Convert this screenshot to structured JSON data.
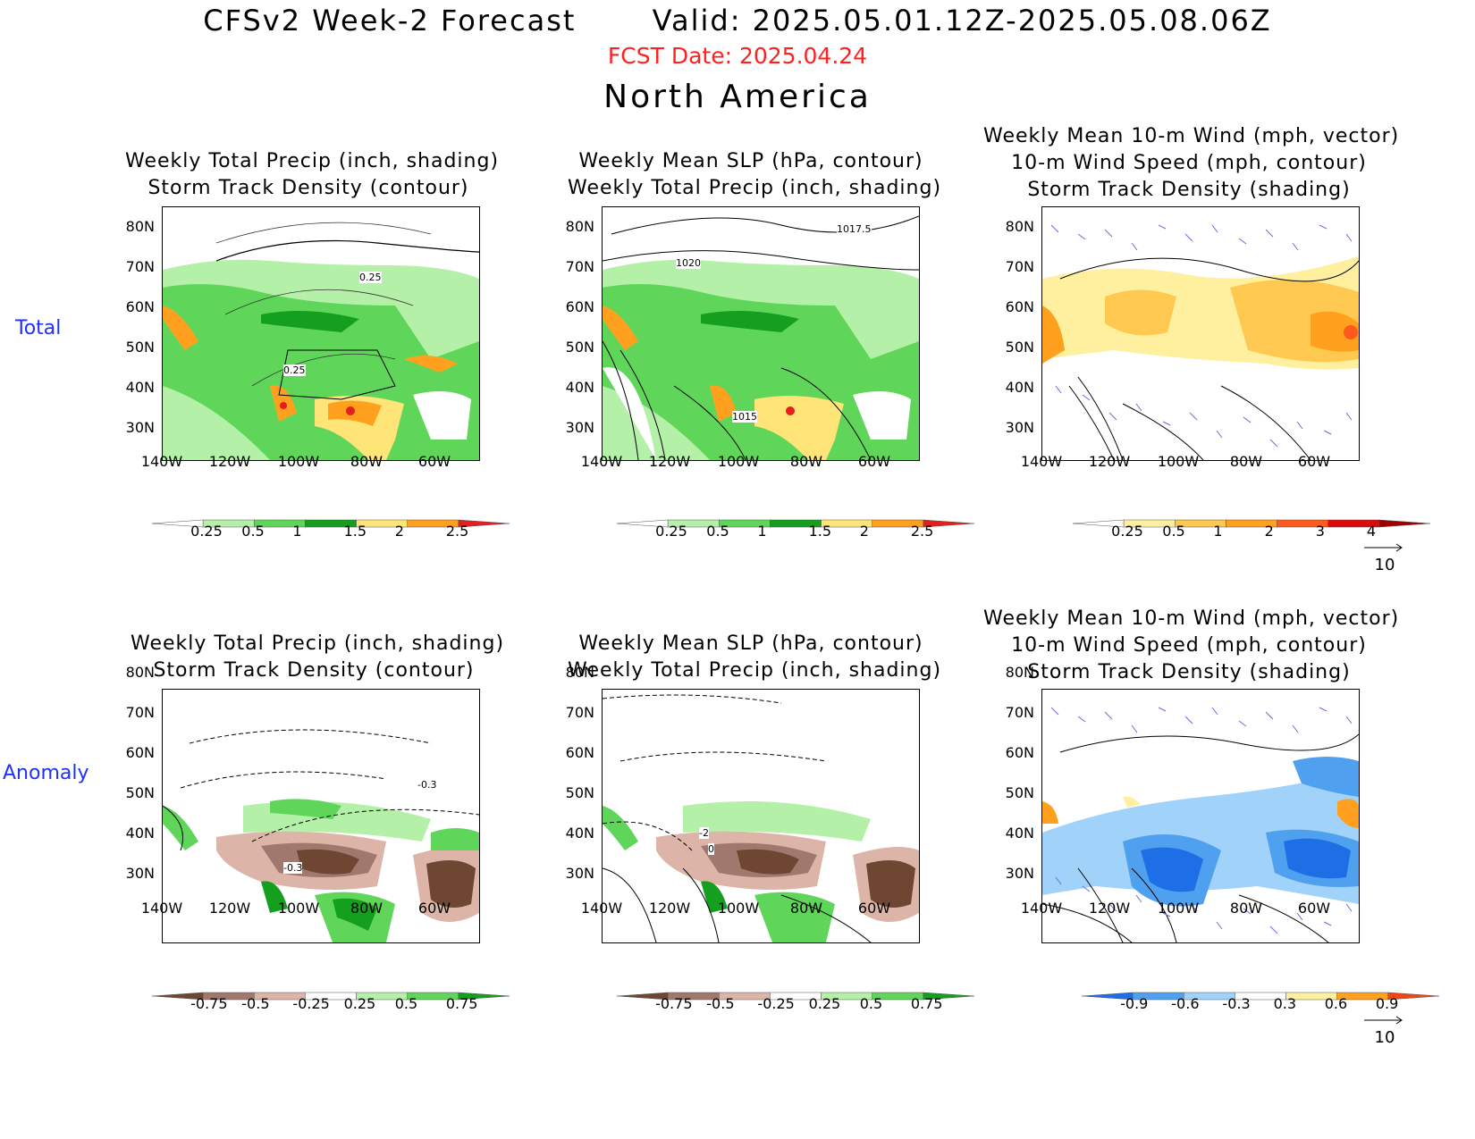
{
  "header": {
    "title": "CFSv2 Week-2 Forecast       Valid: 2025.05.01.12Z-2025.05.08.06Z",
    "fcst_date": "FCST Date: 2025.04.24",
    "region": "North America"
  },
  "row_labels": {
    "total": "Total",
    "anomaly": "Anomaly"
  },
  "panel_titles": {
    "p1": [
      "Weekly Total Precip (inch, shading)",
      "Storm Track Density (contour)"
    ],
    "p2": [
      "Weekly Mean SLP (hPa, contour)",
      "Weekly Total Precip (inch, shading)"
    ],
    "p3": [
      "Weekly Mean 10-m Wind (mph, vector)",
      "10-m Wind Speed (mph, contour)",
      "Storm Track Density (shading)"
    ]
  },
  "axes": {
    "lat_labels": [
      "80N",
      "70N",
      "60N",
      "50N",
      "40N",
      "30N"
    ],
    "lon_labels": [
      "140W",
      "120W",
      "100W",
      "80W",
      "60W"
    ]
  },
  "contour_labels": {
    "p1_total": [
      "0.25",
      "0.25"
    ],
    "p2_total": [
      "1017.5",
      "1020",
      "1015"
    ],
    "p1_anom": [
      "-0.3",
      "-0.3"
    ],
    "p2_anom": [
      "-2",
      "0"
    ]
  },
  "colorbars": {
    "precip_total": {
      "labels": [
        "0.25",
        "0.5",
        "1",
        "1.5",
        "2",
        "2.5"
      ],
      "colors": [
        "#ffffff",
        "#b4f0a8",
        "#5fd65a",
        "#14a01e",
        "#ffe478",
        "#ffa01e",
        "#e61e1e"
      ]
    },
    "storm_total": {
      "labels": [
        "0.25",
        "0.5",
        "1",
        "2",
        "3",
        "4"
      ],
      "colors": [
        "#ffffff",
        "#fff0a0",
        "#ffc850",
        "#ffa01e",
        "#ff5a1e",
        "#dc0a0a",
        "#a00000"
      ]
    },
    "precip_anom": {
      "labels": [
        "-0.75",
        "-0.5",
        "-0.25",
        "0.25",
        "0.5",
        "0.75"
      ],
      "colors": [
        "#6e4632",
        "#a0786e",
        "#dcb4a8",
        "#ffffff",
        "#b4f0a8",
        "#5fd65a",
        "#14a01e"
      ]
    },
    "storm_anom": {
      "labels": [
        "-0.9",
        "-0.6",
        "-0.3",
        "0.3",
        "0.6",
        "0.9"
      ],
      "colors": [
        "#1e6ee6",
        "#50a0f0",
        "#a0d2fa",
        "#ffffff",
        "#fff0a0",
        "#ffa01e",
        "#f04614"
      ]
    }
  },
  "vector_ref": "10"
}
